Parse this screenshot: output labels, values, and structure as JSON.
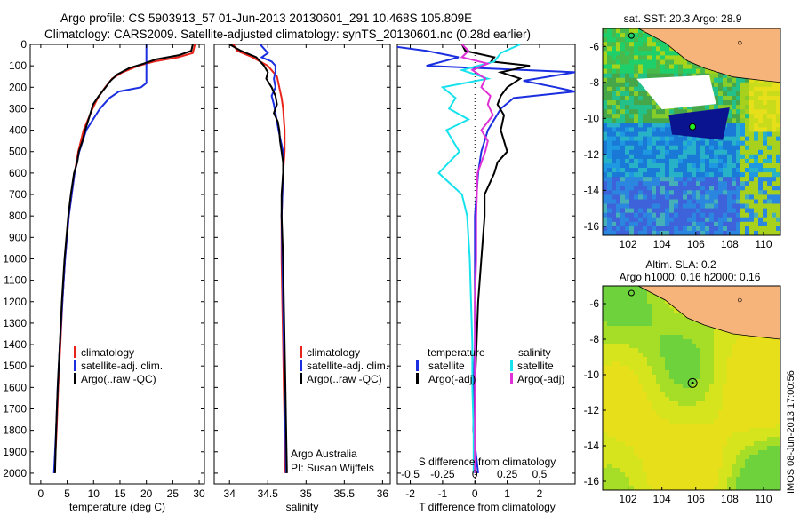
{
  "header": {
    "title_line1": "Argo profile: CS 5903913_57 01-Jun-2013 20130601_291 10.468S 105.809E",
    "title_line2": "Climatology: CARS2009. Satellite-adjusted climatology: synTS_20130601.nc (0.28d earlier)"
  },
  "colors": {
    "climatology": "#e8231a",
    "satellite": "#1b2fe0",
    "argo": "#000000",
    "satellite_sal": "#16e2ee",
    "argo_sal": "#e030d8",
    "land": "#f6b37a",
    "ocean_base": "#e6df1a"
  },
  "chart_data": [
    {
      "type": "line",
      "panel": "temperature",
      "xlabel": "temperature (deg C)",
      "xlim": [
        -2,
        31
      ],
      "ylim": [
        2050,
        0
      ],
      "x_ticks": [
        "0",
        "5",
        "10",
        "15",
        "20",
        "25",
        "30"
      ],
      "y_ticks": [
        "0",
        "100",
        "200",
        "300",
        "400",
        "500",
        "600",
        "700",
        "800",
        "900",
        "1000",
        "1100",
        "1200",
        "1300",
        "1400",
        "1500",
        "1600",
        "1700",
        "1800",
        "1900",
        "2000"
      ],
      "legend": [
        "climatology",
        "satellite-adj. clim.",
        "Argo(..raw -QC)"
      ],
      "series": [
        {
          "name": "climatology",
          "depth": [
            0,
            40,
            60,
            80,
            100,
            130,
            160,
            200,
            250,
            300,
            400,
            500,
            600,
            800,
            1000,
            1200,
            1400,
            1600,
            1800,
            2000
          ],
          "values": [
            29.2,
            28.8,
            26,
            21.5,
            18.5,
            15.5,
            13.5,
            12.2,
            10.8,
            9.8,
            8.1,
            7.1,
            6.4,
            5.3,
            4.6,
            4.1,
            3.7,
            3.3,
            3.0,
            2.6
          ]
        },
        {
          "name": "satellite-adj. clim.",
          "depth": [
            0,
            60,
            100,
            140,
            180,
            200,
            220,
            250,
            300,
            400,
            500,
            600,
            800,
            1000,
            1200,
            1400,
            1600,
            1800,
            2000
          ],
          "values": [
            20.0,
            20.0,
            20.0,
            20.0,
            20.0,
            19.0,
            14.8,
            13.0,
            11.2,
            8.6,
            7.3,
            6.4,
            5.3,
            4.6,
            4.1,
            3.6,
            3.2,
            2.9,
            2.5
          ]
        },
        {
          "name": "Argo(..raw -QC)",
          "depth": [
            0,
            30,
            50,
            70,
            90,
            110,
            140,
            170,
            200,
            240,
            280,
            330,
            400,
            450,
            500,
            550,
            600,
            700,
            800,
            1000,
            1200,
            1400,
            1600,
            1800,
            2000
          ],
          "values": [
            28.8,
            28.5,
            26.2,
            21.8,
            19.5,
            16.8,
            14.5,
            13.2,
            12.3,
            11.0,
            9.9,
            9.3,
            8.4,
            7.9,
            7.2,
            6.9,
            6.3,
            5.7,
            5.2,
            4.5,
            4.0,
            3.6,
            3.2,
            2.9,
            2.7
          ]
        }
      ]
    },
    {
      "type": "line",
      "panel": "salinity",
      "xlabel": "salinity",
      "xlim": [
        33.8,
        36.1
      ],
      "ylim": [
        2050,
        0
      ],
      "x_ticks": [
        "34",
        "34.5",
        "35",
        "35.5",
        "36"
      ],
      "legend": [
        "climatology",
        "satellite-adj. clim.",
        "Argo(..raw -QC)"
      ],
      "annotations": [
        "Argo Australia",
        "PI: Susan Wijffels"
      ],
      "series": [
        {
          "name": "climatology",
          "depth": [
            0,
            30,
            60,
            100,
            150,
            200,
            250,
            300,
            400,
            500,
            600,
            800,
            1000,
            1200,
            1400,
            1600,
            1800,
            2000
          ],
          "values": [
            34.05,
            34.1,
            34.3,
            34.5,
            34.62,
            34.65,
            34.68,
            34.7,
            34.72,
            34.72,
            34.7,
            34.68,
            34.68,
            34.69,
            34.7,
            34.71,
            34.72,
            34.73
          ]
        },
        {
          "name": "satellite-adj. clim.",
          "depth": [
            0,
            20,
            40,
            60,
            80,
            100,
            130,
            160,
            200,
            240,
            280,
            320,
            400,
            500,
            600,
            800,
            1000,
            1200,
            1400,
            1600,
            1800,
            2000
          ],
          "values": [
            34.4,
            34.45,
            34.5,
            34.42,
            34.55,
            34.6,
            34.6,
            34.58,
            34.6,
            34.55,
            34.58,
            34.6,
            34.64,
            34.7,
            34.7,
            34.68,
            34.69,
            34.7,
            34.71,
            34.72,
            34.73,
            34.74
          ]
        },
        {
          "name": "Argo(..raw -QC)",
          "depth": [
            0,
            30,
            60,
            80,
            100,
            130,
            160,
            200,
            240,
            280,
            320,
            360,
            400,
            450,
            500,
            550,
            600,
            700,
            800,
            1000,
            1200,
            1400,
            1600,
            1800,
            2000
          ],
          "values": [
            34.0,
            34.15,
            34.35,
            34.4,
            34.45,
            34.5,
            34.48,
            34.55,
            34.6,
            34.62,
            34.58,
            34.63,
            34.65,
            34.66,
            34.68,
            34.7,
            34.7,
            34.68,
            34.68,
            34.7,
            34.71,
            34.72,
            34.73,
            34.74,
            34.75
          ]
        }
      ]
    },
    {
      "type": "line",
      "panel": "differences",
      "xlabel": "T difference from climatology",
      "x2label": "S difference from climatology",
      "xlim": [
        -2.4,
        3.1
      ],
      "ylim": [
        2050,
        0
      ],
      "x_ticks": [
        "-2",
        "-1",
        "0",
        "1",
        "2"
      ],
      "x2_ticks": [
        "-0.5",
        "-0.25",
        "0",
        "0.25",
        "0.5"
      ],
      "legend_headers": [
        "temperature",
        "salinity"
      ],
      "legend": [
        "satellite",
        "Argo(-adj)",
        "satellite",
        "Argo(-adj)"
      ],
      "series": [
        {
          "name": "T satellite",
          "depth": [
            0,
            30,
            60,
            100,
            130,
            170,
            200,
            220,
            250,
            300,
            400,
            500,
            600,
            800,
            1000,
            1200,
            1400,
            1600,
            1800,
            2000
          ],
          "values": [
            -3,
            -1.5,
            -0.5,
            -1.5,
            3.1,
            1.5,
            2.5,
            3.1,
            1.2,
            0.8,
            0.4,
            0.2,
            0.1,
            0.0,
            0.0,
            0.0,
            0.0,
            -0.05,
            -0.05,
            0.1
          ]
        },
        {
          "name": "T Argo(-adj)",
          "depth": [
            0,
            30,
            60,
            80,
            100,
            130,
            160,
            200,
            240,
            280,
            330,
            400,
            450,
            500,
            550,
            600,
            700,
            800,
            1000,
            1200,
            1400,
            1600,
            1800,
            2000
          ],
          "values": [
            -0.4,
            -0.3,
            0.6,
            0.5,
            1.7,
            0.8,
            1.4,
            1.0,
            0.8,
            0.7,
            0.9,
            0.8,
            0.9,
            1.0,
            0.7,
            0.6,
            0.3,
            0.3,
            0.2,
            0.1,
            0.05,
            0.0,
            0.0,
            0.0
          ]
        },
        {
          "name": "S satellite",
          "depth": [
            0,
            40,
            80,
            120,
            160,
            200,
            250,
            300,
            350,
            400,
            500,
            600,
            700,
            800,
            1000,
            1200,
            1400,
            1600,
            1800,
            2000
          ],
          "values": [
            0.35,
            0.2,
            0.15,
            -0.1,
            0.1,
            -0.25,
            -0.15,
            -0.2,
            -0.05,
            -0.22,
            -0.12,
            -0.28,
            -0.1,
            -0.06,
            -0.04,
            -0.03,
            -0.02,
            -0.02,
            -0.01,
            -0.01
          ]
        },
        {
          "name": "S Argo(-adj)",
          "depth": [
            0,
            30,
            60,
            90,
            120,
            160,
            200,
            240,
            280,
            330,
            400,
            450,
            500,
            600,
            800,
            1000,
            1200,
            1400,
            1600,
            1800,
            2000
          ],
          "values": [
            -0.1,
            -0.05,
            -0.1,
            0.1,
            -0.02,
            0.08,
            0.05,
            0.12,
            0.1,
            0.14,
            0.05,
            0.1,
            0.08,
            0.02,
            0.01,
            0.01,
            0.0,
            0.0,
            0.0,
            0.0,
            0.0
          ]
        }
      ]
    },
    {
      "type": "heatmap",
      "panel": "sst_map",
      "title": "sat. SST: 20.3  Argo: 28.9",
      "xlim": [
        100.5,
        111
      ],
      "ylim": [
        -16.5,
        -5
      ],
      "x_ticks": [
        "102",
        "104",
        "106",
        "108",
        "110"
      ],
      "y_ticks": [
        "-6",
        "-8",
        "-10",
        "-12",
        "-14",
        "-16"
      ],
      "marker": {
        "lon": 105.809,
        "lat": -10.468
      }
    },
    {
      "type": "heatmap",
      "panel": "sla_map",
      "title_line1": "Altim. SLA: 0.2",
      "title_line2": "Argo h1000: 0.16  h2000: 0.16",
      "xlim": [
        100.5,
        111
      ],
      "ylim": [
        -16.5,
        -5
      ],
      "x_ticks": [
        "102",
        "104",
        "106",
        "108",
        "110"
      ],
      "y_ticks": [
        "-6",
        "-8",
        "-10",
        "-12",
        "-14",
        "-16"
      ],
      "marker": {
        "lon": 105.809,
        "lat": -10.468
      }
    }
  ],
  "footer": {
    "credit": "IMOS 08-Jun-2013 17:00:56"
  }
}
